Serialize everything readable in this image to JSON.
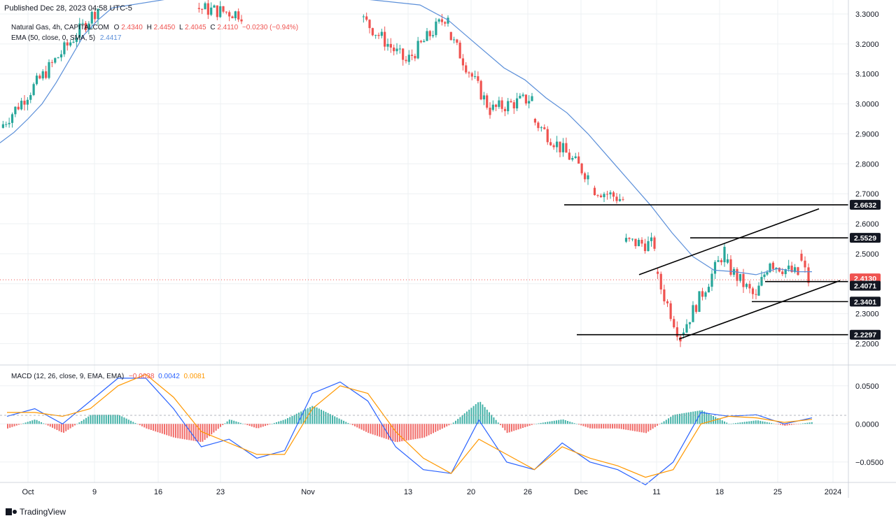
{
  "header": {
    "published": "Published  Dec 28, 2023 04:58 UTC-5"
  },
  "brand": {
    "name": "TradingView"
  },
  "legend": {
    "symbol": "Natural Gas, 4h, CAPITALCOM",
    "open_label": "O",
    "open": "2.4340",
    "high_label": "H",
    "high": "2.4450",
    "low_label": "L",
    "low": "2.4045",
    "close_label": "C",
    "close": "2.4110",
    "change": "−0.0230 (−0.94%)",
    "ema_label": "EMA (50, close, 0, SMA, 5)",
    "ema_value": "2.4417",
    "macd_label": "MACD (12, 26, close, 9, EMA, EMA)",
    "macd_hist": "−0.0038",
    "macd_line": "0.0042",
    "macd_signal": "0.0081"
  },
  "colors": {
    "up": "#26a69a",
    "down": "#ef5350",
    "ema": "#5b8fd9",
    "macd_line": "#2962ff",
    "signal_line": "#ff9800",
    "grid": "#eef0f3"
  },
  "chart_data": [
    {
      "type": "candlestick",
      "ylim": [
        2.18,
        3.3
      ],
      "y_ticks": [
        "3.3000",
        "3.2000",
        "3.1000",
        "3.0000",
        "2.9000",
        "2.8000",
        "2.7000",
        "2.6000",
        "2.5000",
        "2.4000",
        "2.3000",
        "2.2000"
      ],
      "x_ticks": [
        "Oct",
        "9",
        "16",
        "23",
        "Nov",
        "13",
        "20",
        "26",
        "Dec",
        "11",
        "18",
        "25",
        "2024"
      ],
      "price_labels": [
        {
          "value": "2.6632",
          "style": "dark"
        },
        {
          "value": "2.5529",
          "style": "dark"
        },
        {
          "value": "2.4130",
          "style": "red"
        },
        {
          "value": "2.4071",
          "style": "dark"
        },
        {
          "value": "2.3401",
          "style": "dark"
        },
        {
          "value": "2.2297",
          "style": "dark"
        }
      ],
      "levels": [
        2.6632,
        2.5529,
        2.4071,
        2.3401,
        2.2297
      ],
      "channel": {
        "lower": [
          [
            "Dec 13",
            2.21
          ],
          [
            "Dec 29",
            2.41
          ]
        ],
        "upper": [
          [
            "Dec 11",
            2.44
          ],
          [
            "Dec 29",
            2.65
          ]
        ]
      },
      "ema_path": [
        [
          0,
          2.87
        ],
        [
          20,
          2.905
        ],
        [
          40,
          2.95
        ],
        [
          60,
          3.0
        ],
        [
          80,
          3.07
        ],
        [
          100,
          3.15
        ],
        [
          120,
          3.23
        ],
        [
          140,
          3.28
        ],
        [
          160,
          3.32
        ],
        [
          240,
          3.35
        ],
        [
          520,
          3.35
        ],
        [
          600,
          3.33
        ],
        [
          640,
          3.28
        ],
        [
          680,
          3.2
        ],
        [
          720,
          3.12
        ],
        [
          750,
          3.08
        ],
        [
          780,
          3.02
        ],
        [
          810,
          2.97
        ],
        [
          840,
          2.9
        ],
        [
          870,
          2.82
        ],
        [
          900,
          2.74
        ],
        [
          930,
          2.66
        ],
        [
          960,
          2.57
        ],
        [
          990,
          2.49
        ],
        [
          1020,
          2.445
        ],
        [
          1050,
          2.44
        ],
        [
          1080,
          2.43
        ],
        [
          1110,
          2.45
        ],
        [
          1140,
          2.44
        ],
        [
          1160,
          2.44
        ]
      ],
      "segments": [
        {
          "from": 0,
          "to": 140,
          "start": 2.92,
          "end": 3.32
        },
        {
          "from": 280,
          "to": 345,
          "start": 3.32,
          "end": 3.3
        },
        {
          "from": 515,
          "to": 580,
          "start": 3.29,
          "end": 3.14
        },
        {
          "from": 580,
          "to": 640,
          "start": 3.14,
          "end": 3.3
        },
        {
          "from": 640,
          "to": 700,
          "start": 3.24,
          "end": 2.98
        },
        {
          "from": 700,
          "to": 760,
          "start": 2.98,
          "end": 3.02
        },
        {
          "from": 760,
          "to": 840,
          "start": 2.95,
          "end": 2.76
        },
        {
          "from": 845,
          "to": 890,
          "start": 2.72,
          "end": 2.68
        },
        {
          "from": 890,
          "to": 935,
          "start": 2.54,
          "end": 2.53
        },
        {
          "from": 935,
          "to": 972,
          "start": 2.44,
          "end": 2.22
        },
        {
          "from": 972,
          "to": 1035,
          "start": 2.23,
          "end": 2.51
        },
        {
          "from": 1035,
          "to": 1080,
          "start": 2.47,
          "end": 2.35
        },
        {
          "from": 1080,
          "to": 1100,
          "start": 2.36,
          "end": 2.48
        },
        {
          "from": 1100,
          "to": 1140,
          "start": 2.47,
          "end": 2.43
        },
        {
          "from": 1140,
          "to": 1155,
          "start": 2.5,
          "end": 2.41
        }
      ]
    },
    {
      "type": "macd",
      "ylim": [
        -0.075,
        0.07
      ],
      "y_ticks": [
        "0.0500",
        "0.0000",
        "−0.0500"
      ],
      "histogram_range": [
        -0.023,
        0.033
      ],
      "series": [
        {
          "name": "MACD",
          "values": [
            0.01,
            0.02,
            0.0,
            0.03,
            0.06,
            0.06,
            0.02,
            -0.03,
            -0.02,
            -0.045,
            -0.035,
            0.04,
            0.055,
            0.03,
            -0.03,
            -0.06,
            -0.065,
            0.005,
            -0.05,
            -0.06,
            -0.025,
            -0.05,
            -0.06,
            -0.08,
            -0.05,
            0.015,
            0.01,
            0.012,
            0.0,
            0.008
          ]
        },
        {
          "name": "Signal",
          "values": [
            0.015,
            0.015,
            0.01,
            0.02,
            0.05,
            0.065,
            0.035,
            -0.01,
            -0.025,
            -0.04,
            -0.04,
            0.02,
            0.05,
            0.04,
            -0.01,
            -0.045,
            -0.065,
            -0.02,
            -0.04,
            -0.06,
            -0.03,
            -0.045,
            -0.055,
            -0.07,
            -0.06,
            0.0,
            0.01,
            0.008,
            0.002,
            0.006
          ]
        }
      ]
    }
  ]
}
